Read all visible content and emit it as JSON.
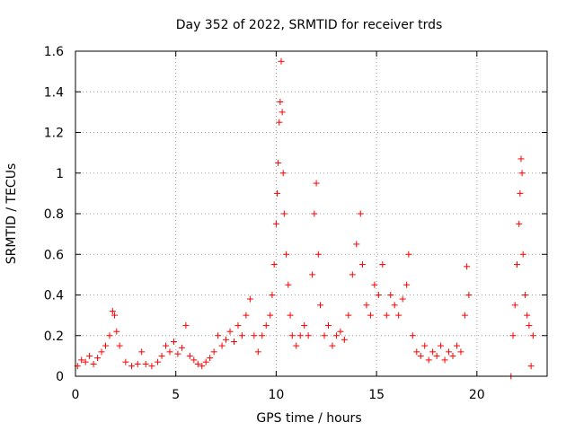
{
  "chart_data": {
    "type": "scatter",
    "title": "Day 352 of 2022, SRMTID for receiver trds",
    "xlabel": "GPS time / hours",
    "ylabel": "SRMTID / TECUs",
    "xlim": [
      0,
      23.5
    ],
    "ylim": [
      0,
      1.6
    ],
    "xticks": [
      0,
      5,
      10,
      15,
      20
    ],
    "xtick_labels": [
      "0",
      "5",
      "10",
      "15",
      "20"
    ],
    "yticks": [
      0,
      0.2,
      0.4,
      0.6,
      0.8,
      1,
      1.2,
      1.4,
      1.6
    ],
    "ytick_labels": [
      "0",
      "0.2",
      "0.4",
      "0.6",
      "0.8",
      "1",
      "1.2",
      "1.4",
      "1.6"
    ],
    "grid": true,
    "marker": "+",
    "color": "#ff0000",
    "series": [
      {
        "name": "SRMTID",
        "points": [
          [
            0.1,
            0.05
          ],
          [
            0.3,
            0.08
          ],
          [
            0.5,
            0.07
          ],
          [
            0.7,
            0.1
          ],
          [
            0.9,
            0.06
          ],
          [
            1.1,
            0.09
          ],
          [
            1.3,
            0.12
          ],
          [
            1.5,
            0.15
          ],
          [
            1.7,
            0.2
          ],
          [
            1.85,
            0.32
          ],
          [
            1.95,
            0.3
          ],
          [
            2.05,
            0.22
          ],
          [
            2.2,
            0.15
          ],
          [
            2.5,
            0.07
          ],
          [
            2.8,
            0.05
          ],
          [
            3.1,
            0.06
          ],
          [
            3.3,
            0.12
          ],
          [
            3.5,
            0.06
          ],
          [
            3.8,
            0.05
          ],
          [
            4.1,
            0.07
          ],
          [
            4.3,
            0.1
          ],
          [
            4.5,
            0.15
          ],
          [
            4.7,
            0.12
          ],
          [
            4.9,
            0.17
          ],
          [
            5.1,
            0.11
          ],
          [
            5.3,
            0.14
          ],
          [
            5.5,
            0.25
          ],
          [
            5.7,
            0.1
          ],
          [
            5.9,
            0.08
          ],
          [
            6.1,
            0.06
          ],
          [
            6.3,
            0.05
          ],
          [
            6.5,
            0.07
          ],
          [
            6.7,
            0.09
          ],
          [
            6.9,
            0.12
          ],
          [
            7.1,
            0.2
          ],
          [
            7.3,
            0.15
          ],
          [
            7.5,
            0.18
          ],
          [
            7.7,
            0.22
          ],
          [
            7.9,
            0.17
          ],
          [
            8.1,
            0.25
          ],
          [
            8.3,
            0.2
          ],
          [
            8.5,
            0.3
          ],
          [
            8.7,
            0.38
          ],
          [
            8.9,
            0.2
          ],
          [
            9.1,
            0.12
          ],
          [
            9.3,
            0.2
          ],
          [
            9.5,
            0.25
          ],
          [
            9.7,
            0.3
          ],
          [
            9.8,
            0.4
          ],
          [
            9.9,
            0.55
          ],
          [
            10.0,
            0.75
          ],
          [
            10.05,
            0.9
          ],
          [
            10.1,
            1.05
          ],
          [
            10.15,
            1.25
          ],
          [
            10.2,
            1.35
          ],
          [
            10.25,
            1.55
          ],
          [
            10.3,
            1.3
          ],
          [
            10.35,
            1.0
          ],
          [
            10.4,
            0.8
          ],
          [
            10.5,
            0.6
          ],
          [
            10.6,
            0.45
          ],
          [
            10.7,
            0.3
          ],
          [
            10.8,
            0.2
          ],
          [
            11.0,
            0.15
          ],
          [
            11.2,
            0.2
          ],
          [
            11.4,
            0.25
          ],
          [
            11.6,
            0.2
          ],
          [
            11.8,
            0.5
          ],
          [
            11.9,
            0.8
          ],
          [
            12.0,
            0.95
          ],
          [
            12.1,
            0.6
          ],
          [
            12.2,
            0.35
          ],
          [
            12.4,
            0.2
          ],
          [
            12.6,
            0.25
          ],
          [
            12.8,
            0.15
          ],
          [
            13.0,
            0.2
          ],
          [
            13.2,
            0.22
          ],
          [
            13.4,
            0.18
          ],
          [
            13.6,
            0.3
          ],
          [
            13.8,
            0.5
          ],
          [
            14.0,
            0.65
          ],
          [
            14.2,
            0.8
          ],
          [
            14.3,
            0.55
          ],
          [
            14.5,
            0.35
          ],
          [
            14.7,
            0.3
          ],
          [
            14.9,
            0.45
          ],
          [
            15.1,
            0.4
          ],
          [
            15.3,
            0.55
          ],
          [
            15.5,
            0.3
          ],
          [
            15.7,
            0.4
          ],
          [
            15.9,
            0.35
          ],
          [
            16.1,
            0.3
          ],
          [
            16.3,
            0.38
          ],
          [
            16.5,
            0.45
          ],
          [
            16.6,
            0.6
          ],
          [
            16.8,
            0.2
          ],
          [
            17.0,
            0.12
          ],
          [
            17.2,
            0.1
          ],
          [
            17.4,
            0.15
          ],
          [
            17.6,
            0.08
          ],
          [
            17.8,
            0.12
          ],
          [
            18.0,
            0.1
          ],
          [
            18.2,
            0.15
          ],
          [
            18.4,
            0.08
          ],
          [
            18.6,
            0.12
          ],
          [
            18.8,
            0.1
          ],
          [
            19.0,
            0.15
          ],
          [
            19.2,
            0.12
          ],
          [
            19.4,
            0.3
          ],
          [
            19.5,
            0.54
          ],
          [
            19.6,
            0.4
          ],
          [
            21.7,
            0.0
          ],
          [
            21.8,
            0.2
          ],
          [
            21.9,
            0.35
          ],
          [
            22.0,
            0.55
          ],
          [
            22.1,
            0.75
          ],
          [
            22.15,
            0.9
          ],
          [
            22.2,
            1.07
          ],
          [
            22.25,
            1.0
          ],
          [
            22.3,
            0.6
          ],
          [
            22.4,
            0.4
          ],
          [
            22.5,
            0.3
          ],
          [
            22.6,
            0.25
          ],
          [
            22.7,
            0.05
          ],
          [
            22.8,
            0.2
          ]
        ]
      }
    ]
  }
}
